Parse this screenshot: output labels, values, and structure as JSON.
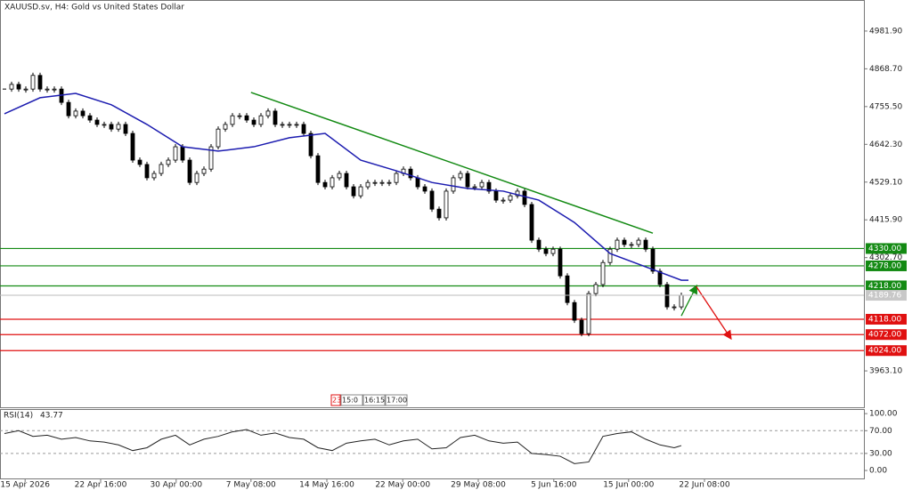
{
  "chart_data": {
    "type": "candlestick",
    "title": "XAUUSD.sv, H4:  Gold vs United States Dollar",
    "xlim": [
      -0.625,
      120.625
    ],
    "ylim": [
      3854,
      5075
    ],
    "yticks": [
      {
        "value": 4981.9,
        "label": "4981.90"
      },
      {
        "value": 4868.7,
        "label": "4868.70"
      },
      {
        "value": 4755.5,
        "label": "4755.50"
      },
      {
        "value": 4642.3,
        "label": "4642.30"
      },
      {
        "value": 4529.1,
        "label": "4529.10"
      },
      {
        "value": 4415.9,
        "label": "4415.90"
      },
      {
        "value": 4302.7,
        "label": "4302.70"
      },
      {
        "value": 3963.1,
        "label": "3963.10"
      }
    ],
    "xticks": [
      {
        "value": 2.9,
        "label": "15 Apr 2026"
      },
      {
        "value": 13.5,
        "label": "22 Apr 16:00"
      },
      {
        "value": 24.1,
        "label": "30 Apr 00:00"
      },
      {
        "value": 34.6,
        "label": "7 May 08:00"
      },
      {
        "value": 45.25,
        "label": "14 May 16:00"
      },
      {
        "value": 55.9,
        "label": "22 May 00:00"
      },
      {
        "value": 66.5,
        "label": "29 May 08:00"
      },
      {
        "value": 77.1,
        "label": "5 Jun 16:00"
      },
      {
        "value": 87.6,
        "label": "15 Jun 00:00"
      },
      {
        "value": 98.25,
        "label": "22 Jun 08:00"
      }
    ],
    "candles": {
      "values": [
        4808,
        4822,
        4808,
        4808,
        4849,
        4808,
        4808,
        4808,
        4768,
        4728,
        4742,
        4728,
        4715,
        4702,
        4702,
        4688,
        4702,
        4675,
        4595,
        4582,
        4542,
        4555,
        4582,
        4595,
        4635,
        4595,
        4528,
        4555,
        4568,
        4635,
        4688,
        4702,
        4728,
        4728,
        4715,
        4702,
        4728,
        4742,
        4702,
        4702,
        4702,
        4702,
        4675,
        4608,
        4528,
        4515,
        4542,
        4555,
        4515,
        4488,
        4515,
        4528,
        4528,
        4528,
        4528,
        4555,
        4568,
        4542,
        4515,
        4502,
        4448,
        4422,
        4502,
        4542,
        4555,
        4515,
        4515,
        4528,
        4502,
        4475,
        4475,
        4488,
        4502,
        4462,
        4355,
        4328,
        4315,
        4328,
        4248,
        4168,
        4115,
        4075,
        4195,
        4222,
        4288,
        4328,
        4355,
        4342,
        4342,
        4355,
        4328,
        4262,
        4222,
        4155,
        4155,
        4189.76
      ]
    },
    "moving_average": {
      "color": "#1c1cb0",
      "x": [
        0,
        5,
        10,
        15,
        20,
        25,
        30,
        35,
        40,
        45,
        50,
        55,
        60,
        65,
        70,
        75,
        80,
        85,
        90,
        95,
        96
      ],
      "values": [
        4734,
        4782,
        4795,
        4761,
        4702,
        4635,
        4622,
        4635,
        4662,
        4675,
        4595,
        4563,
        4528,
        4510,
        4502,
        4475,
        4408,
        4315,
        4275,
        4235,
        4235
      ]
    },
    "trendline": {
      "color": "#138a13",
      "x": [
        34.6,
        91
      ],
      "values": [
        4798,
        4376
      ]
    },
    "projection": {
      "x": [
        95,
        97.1,
        101.9
      ],
      "values": [
        4128,
        4216,
        4062
      ],
      "colors": [
        "#138a13",
        "#e01010"
      ]
    },
    "levels": [
      {
        "value": 4330,
        "label": "4330.00",
        "color": "#138a13"
      },
      {
        "value": 4278,
        "label": "4278.00",
        "color": "#138a13"
      },
      {
        "value": 4218,
        "label": "4218.00",
        "color": "#138a13"
      },
      {
        "value": 4118,
        "label": "4118.00",
        "color": "#e01010"
      },
      {
        "value": 4072,
        "label": "4072.00",
        "color": "#e01010"
      },
      {
        "value": 4024,
        "label": "4024.00",
        "color": "#e01010"
      }
    ],
    "time_scale_widget": [
      "23",
      "15:0",
      "16:15",
      "17:00"
    ],
    "rsi": {
      "label": "RSI(14)",
      "ylim": [
        -14,
        108
      ],
      "yticks": [
        {
          "value": 100,
          "label": "100.00"
        },
        {
          "value": 70,
          "label": "70.00"
        },
        {
          "value": 30,
          "label": "30.00"
        },
        {
          "value": 0,
          "label": "0.00"
        }
      ],
      "levels": [
        70,
        30
      ],
      "x": [
        0,
        2,
        4,
        6,
        8,
        10,
        12,
        14,
        16,
        18,
        20,
        22,
        24,
        26,
        28,
        30,
        32,
        34,
        36,
        38,
        40,
        42,
        44,
        46,
        48,
        50,
        52,
        54,
        56,
        58,
        60,
        62,
        64,
        66,
        68,
        70,
        72,
        74,
        76,
        78,
        80,
        82,
        84,
        86,
        88,
        90,
        92,
        94,
        95
      ],
      "values": [
        65,
        70,
        60,
        62,
        55,
        58,
        52,
        50,
        45,
        35,
        40,
        55,
        62,
        45,
        55,
        60,
        68,
        72,
        62,
        66,
        58,
        55,
        40,
        35,
        48,
        52,
        55,
        45,
        52,
        55,
        38,
        40,
        58,
        62,
        52,
        48,
        50,
        30,
        28,
        25,
        12,
        15,
        60,
        65,
        68,
        55,
        45,
        40,
        43.77
      ]
    }
  }
}
